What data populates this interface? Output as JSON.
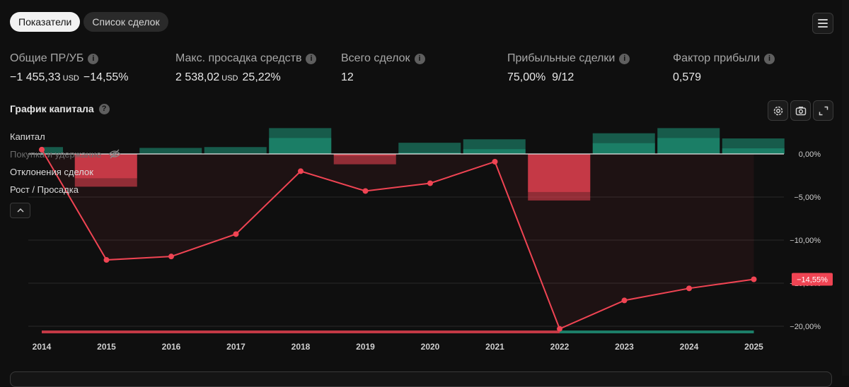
{
  "tabs": [
    {
      "label": "Показатели",
      "active": true
    },
    {
      "label": "Список сделок",
      "active": false
    }
  ],
  "stats": {
    "net_pnl": {
      "label": "Общие ПР/УБ",
      "value": "−1 455,33",
      "unit": "USD",
      "percent": "−14,55%"
    },
    "max_drawdown": {
      "label": "Макс. просадка средств",
      "value": "2 538,02",
      "unit": "USD",
      "percent": "25,22%"
    },
    "total_trades": {
      "label": "Всего сделок",
      "value": "12"
    },
    "profitable_trades": {
      "label": "Прибыльные сделки",
      "value": "75,00%  9/12"
    },
    "profit_factor": {
      "label": "Фактор прибыли",
      "value": "0,579"
    }
  },
  "capital_chart": {
    "title": "График капитала",
    "legend": [
      "Капитал",
      "Покупка и удержание",
      "Отклонения сделок",
      "Рост / Просадка"
    ],
    "last_value_label": "−14,55%"
  },
  "colors": {
    "accent_red": "#f04453",
    "accent_green": "#1f9a7e",
    "background": "#0f0f0f"
  },
  "icons": [
    "info-icon",
    "hamburger-menu-icon",
    "settings-icon",
    "camera-icon",
    "fullscreen-icon",
    "eye-off-icon",
    "chevron-up-icon"
  ],
  "chart_data": {
    "type": "line",
    "x": [
      "2014",
      "2015",
      "2016",
      "2017",
      "2018",
      "2019",
      "2020",
      "2021",
      "2022",
      "2023",
      "2024",
      "2025"
    ],
    "y_ticks": [
      "0,00%",
      "−5,00%",
      "−10,00%",
      "−15,00%",
      "−20,00%"
    ],
    "ylim": [
      -21,
      3
    ],
    "series": [
      {
        "name": "Капитал",
        "values": [
          0.5,
          -12.3,
          -11.9,
          -9.3,
          -2.0,
          -4.3,
          -3.4,
          -0.9,
          -20.3,
          -17.0,
          -15.6,
          -14.55
        ]
      }
    ],
    "bars": [
      {
        "x": "2014",
        "value": 0.8
      },
      {
        "x": "2015",
        "value": -3.8
      },
      {
        "x": "2016",
        "value": 0.7
      },
      {
        "x": "2017",
        "value": 0.8
      },
      {
        "x": "2018",
        "value": 3.0
      },
      {
        "x": "2019",
        "value": -1.2
      },
      {
        "x": "2020",
        "value": 1.3
      },
      {
        "x": "2021",
        "value": 1.7
      },
      {
        "x": "2022",
        "value": -5.4
      },
      {
        "x": "2023",
        "value": 2.4
      },
      {
        "x": "2024",
        "value": 3.0
      },
      {
        "x": "2025",
        "value": 1.8
      }
    ]
  }
}
